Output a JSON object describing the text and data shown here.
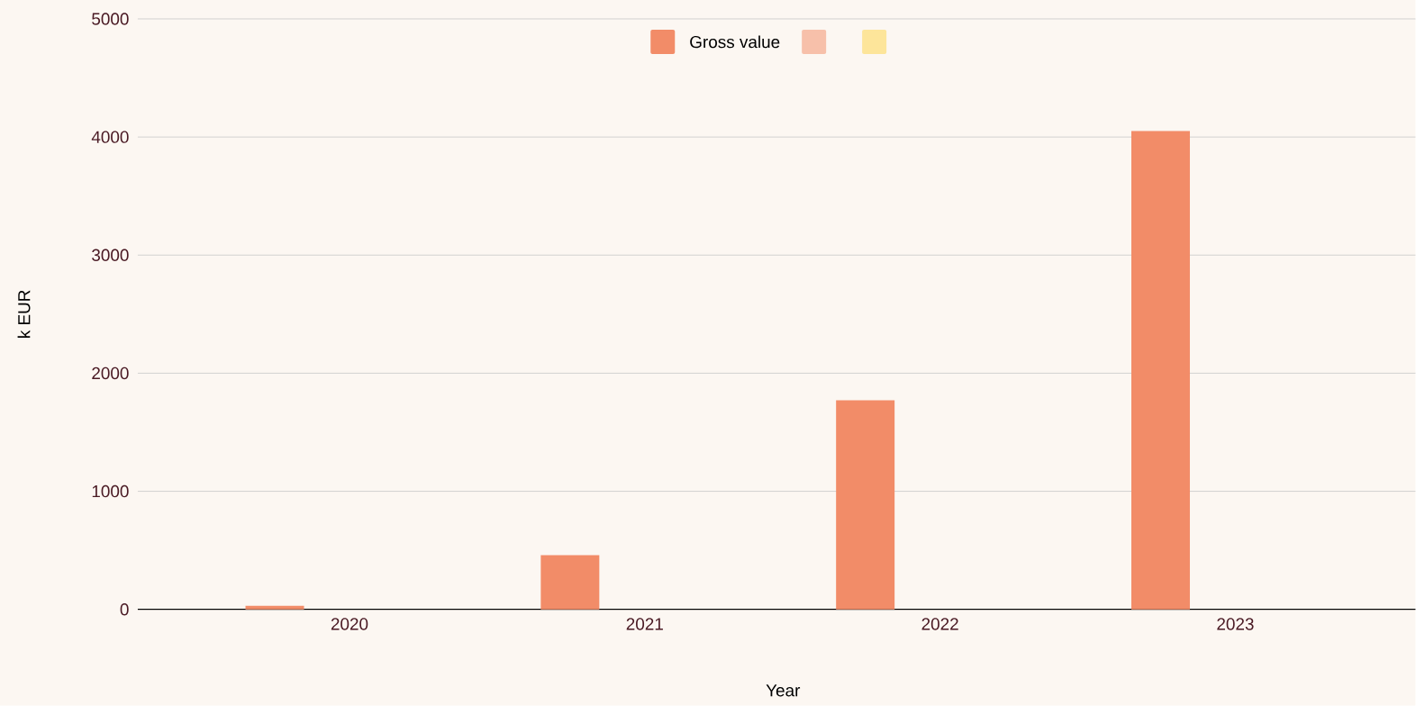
{
  "chart_data": {
    "type": "bar",
    "xlabel": "Year",
    "ylabel": "k EUR",
    "categories": [
      "2020",
      "2021",
      "2022",
      "2023"
    ],
    "series": [
      {
        "name": "Gross value",
        "color": "#f28c68",
        "values": [
          30,
          460,
          1770,
          4050
        ]
      },
      {
        "color": "#f7c0aa",
        "values": [
          null,
          null,
          null,
          null
        ]
      },
      {
        "color": "#fde59a",
        "values": [
          null,
          null,
          null,
          null
        ]
      }
    ],
    "ylim": [
      0,
      5000
    ],
    "yticks": [
      0,
      1000,
      2000,
      3000,
      4000,
      5000
    ],
    "grid": "y",
    "legend": "top"
  }
}
